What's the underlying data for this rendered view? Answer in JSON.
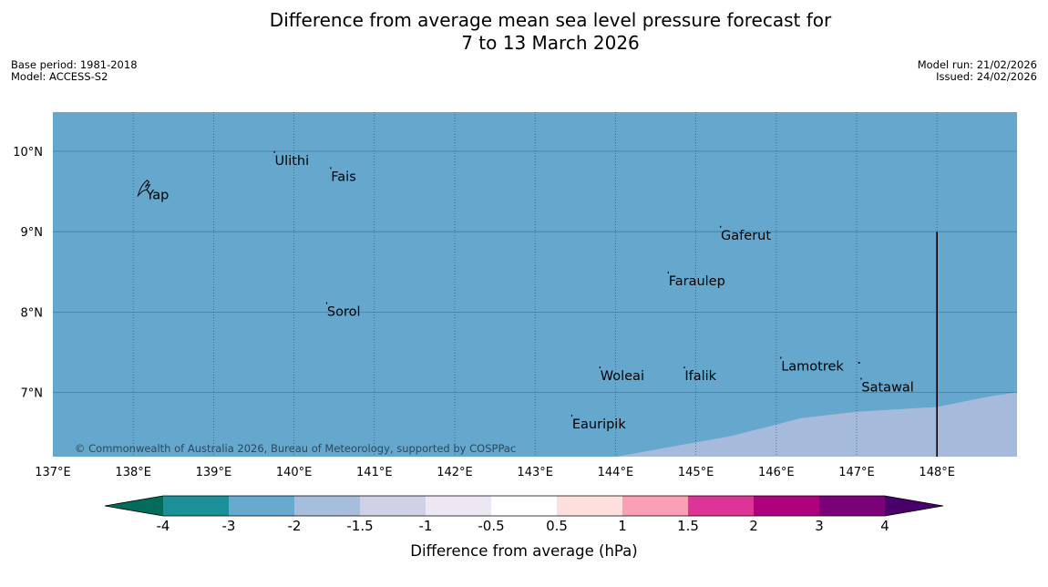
{
  "header": {
    "title_line1": "Difference from average mean sea level pressure forecast for",
    "title_line2": "7 to 13 March 2026",
    "base_period": "Base period: 1981-2018",
    "model": "Model: ACCESS-S2",
    "model_run": "Model run: 21/02/2026",
    "issued": "Issued: 24/02/2026"
  },
  "map": {
    "lon_range": [
      137,
      149
    ],
    "lat_range": [
      6.2,
      10.5
    ],
    "lon_ticks": [
      {
        "value": 137,
        "label": "137°E"
      },
      {
        "value": 138,
        "label": "138°E"
      },
      {
        "value": 139,
        "label": "139°E"
      },
      {
        "value": 140,
        "label": "140°E"
      },
      {
        "value": 141,
        "label": "141°E"
      },
      {
        "value": 142,
        "label": "142°E"
      },
      {
        "value": 143,
        "label": "143°E"
      },
      {
        "value": 144,
        "label": "144°E"
      },
      {
        "value": 145,
        "label": "145°E"
      },
      {
        "value": 146,
        "label": "146°E"
      },
      {
        "value": 147,
        "label": "147°E"
      },
      {
        "value": 148,
        "label": "148°E"
      }
    ],
    "lat_ticks": [
      {
        "value": 10,
        "label": "10°N"
      },
      {
        "value": 9,
        "label": "9°N"
      },
      {
        "value": 8,
        "label": "8°N"
      },
      {
        "value": 7,
        "label": "7°N"
      }
    ],
    "places": [
      {
        "name": "Ulithi",
        "lon": 139.75,
        "lat": 9.98
      },
      {
        "name": "Fais",
        "lon": 140.45,
        "lat": 9.78
      },
      {
        "name": "Yap",
        "lon": 138.15,
        "lat": 9.55
      },
      {
        "name": "Gaferut",
        "lon": 145.3,
        "lat": 9.05
      },
      {
        "name": "Faraulep",
        "lon": 144.65,
        "lat": 8.48
      },
      {
        "name": "Sorol",
        "lon": 140.4,
        "lat": 8.1
      },
      {
        "name": "Lamotrek",
        "lon": 146.05,
        "lat": 7.42
      },
      {
        "name": "Woleai",
        "lon": 143.8,
        "lat": 7.3
      },
      {
        "name": "Ifalik",
        "lon": 144.85,
        "lat": 7.3
      },
      {
        "name": "Satawal",
        "lon": 147.05,
        "lat": 7.16
      },
      {
        "name": "Eauripik",
        "lon": 143.45,
        "lat": 6.7
      }
    ],
    "boundary_line": {
      "lon": 148,
      "lat_from": 6.2,
      "lat_to": 9.0
    },
    "fill_value_hPa": -2.5,
    "lower_zone_value_hPa": -1.75,
    "lower_zone_boundary": [
      {
        "lon": 144.0,
        "lat": 6.2
      },
      {
        "lon": 145.0,
        "lat": 6.38
      },
      {
        "lon": 145.4,
        "lat": 6.45
      },
      {
        "lon": 146.0,
        "lat": 6.6
      },
      {
        "lon": 146.3,
        "lat": 6.68
      },
      {
        "lon": 147.0,
        "lat": 6.76
      },
      {
        "lon": 148.0,
        "lat": 6.82
      },
      {
        "lon": 148.7,
        "lat": 6.96
      },
      {
        "lon": 149.0,
        "lat": 7.0
      }
    ],
    "copyright": "© Commonwealth of Australia 2026, Bureau of Meteorology, supported by COSPPac",
    "colors": {
      "sea": "#65a7cd",
      "lower_zone": "#a6bbdb"
    }
  },
  "colorbar": {
    "label": "Difference from average (hPa)",
    "ticks": [
      "-4",
      "-3",
      "-2",
      "-1.5",
      "-1",
      "-0.5",
      "0.5",
      "1",
      "1.5",
      "2",
      "3",
      "4"
    ],
    "low_extend_color": "#016c59",
    "high_extend_color": "#49006a",
    "colors": [
      "#1c9099",
      "#67a9cf",
      "#a6bddb",
      "#d0d1e6",
      "#ece7f2",
      "#ffffff",
      "#fde0dd",
      "#fa9fb5",
      "#dd3497",
      "#ae017e",
      "#7a0177"
    ]
  }
}
